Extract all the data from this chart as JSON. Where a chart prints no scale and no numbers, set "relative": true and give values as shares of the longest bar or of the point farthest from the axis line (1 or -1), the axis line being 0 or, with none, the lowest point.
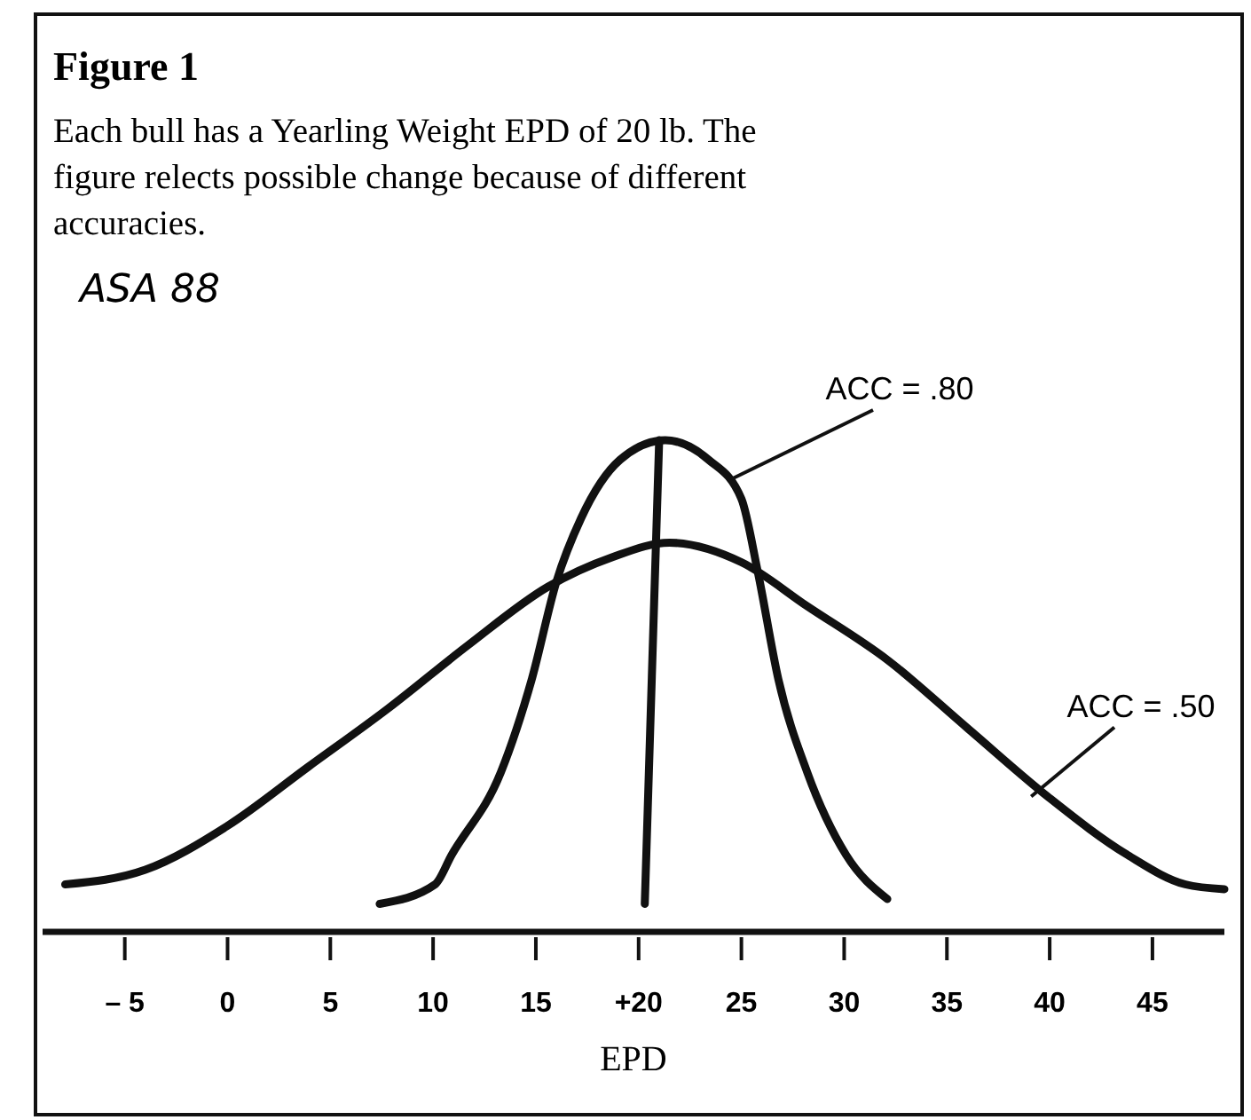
{
  "chart_data": {
    "type": "line",
    "title": "Figure 1",
    "subtitle": "Each bull has a Yearling Weight EPD of 20 lb. The figure relects possible change because of different accuracies.",
    "xlabel": "EPD",
    "relative": true,
    "xlim": [
      -9,
      48.5
    ],
    "xticks": [
      {
        "value": -5,
        "label": "– 5"
      },
      0,
      5,
      10,
      15,
      {
        "value": 20,
        "label": "+20"
      },
      25,
      30,
      35,
      40,
      45
    ],
    "series": [
      {
        "color": "#111111",
        "x": [
          -7.9,
          -4,
          0,
          3.9,
          7.8,
          11.7,
          15.6,
          18.7,
          21.5,
          25,
          28.2,
          32.1,
          36,
          39.9,
          43.8,
          46.6,
          48.5
        ],
        "values": [
          0.09,
          0.12,
          0.21,
          0.33,
          0.45,
          0.58,
          0.7,
          0.76,
          0.79,
          0.75,
          0.66,
          0.55,
          0.41,
          0.27,
          0.15,
          0.09,
          0.08
        ]
      },
      {
        "color": "#111111",
        "x": [
          7.4,
          10.1,
          10.9,
          13.3,
          14.8,
          16,
          17.2,
          19.1,
          21.3,
          23.4,
          25,
          25.8,
          26.8,
          28.2,
          30.1,
          32.1
        ],
        "values": [
          0.05,
          0.09,
          0.15,
          0.32,
          0.51,
          0.71,
          0.84,
          0.96,
          1,
          0.96,
          0.88,
          0.73,
          0.51,
          0.32,
          0.15,
          0.06
        ]
      },
      {
        "color": "#111111",
        "x": [
          20.3,
          21
        ],
        "values": [
          0.05,
          1
        ]
      }
    ],
    "annotations": [
      "ASA 88",
      {
        "text": "ACC = .80",
        "x": 24.5,
        "y": 0.92
      },
      {
        "text": "ACC = .50",
        "x": 39.1,
        "y": 0.27
      }
    ],
    "marker": "none",
    "line_style": "solid"
  }
}
